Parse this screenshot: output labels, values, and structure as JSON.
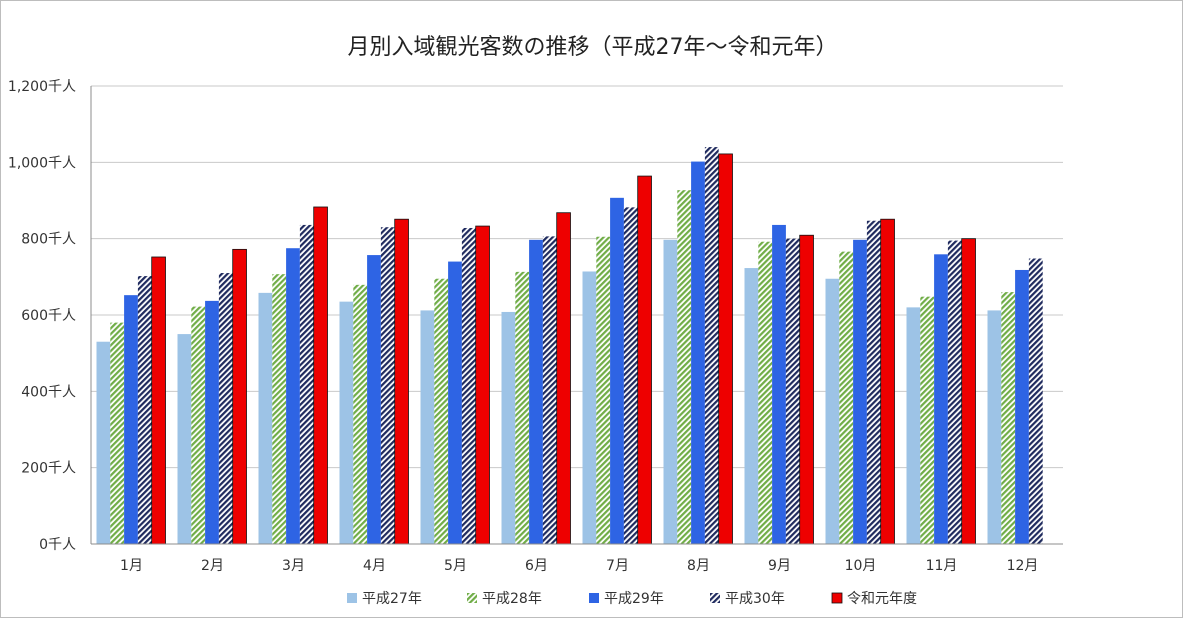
{
  "chart_data": {
    "type": "bar",
    "title": "月別入域観光客数の推移（平成27年～令和元年）",
    "categories": [
      "1月",
      "2月",
      "3月",
      "4月",
      "5月",
      "6月",
      "7月",
      "8月",
      "9月",
      "10月",
      "11月",
      "12月"
    ],
    "y_ticks": [
      "0千人",
      "200千人",
      "400千人",
      "600千人",
      "800千人",
      "1,000千人",
      "1,200千人"
    ],
    "ylim": [
      0,
      1200
    ],
    "grid": true,
    "legend_position": "bottom",
    "series": [
      {
        "name": "平成27年",
        "color": "#9dc3e6",
        "pattern": "solid",
        "values": [
          530,
          550,
          658,
          635,
          612,
          608,
          714,
          797,
          723,
          695,
          620,
          612
        ]
      },
      {
        "name": "平成28年",
        "color": "#70ad47",
        "pattern": "diagonal-hatch",
        "values": [
          580,
          622,
          707,
          679,
          695,
          713,
          805,
          927,
          792,
          766,
          648,
          660
        ]
      },
      {
        "name": "平成29年",
        "color": "#2e64e4",
        "pattern": "solid",
        "values": [
          652,
          637,
          775,
          757,
          740,
          797,
          907,
          1002,
          836,
          797,
          759,
          718
        ]
      },
      {
        "name": "平成30年",
        "color": "#1f2a5e",
        "pattern": "diagonal-hatch",
        "values": [
          702,
          710,
          836,
          830,
          828,
          806,
          882,
          1040,
          800,
          847,
          795,
          748
        ]
      },
      {
        "name": "令和元年度",
        "color": "#ee0000",
        "pattern": "solid",
        "values": [
          752,
          772,
          883,
          851,
          833,
          868,
          964,
          1022,
          809,
          851,
          800,
          null
        ]
      }
    ]
  }
}
